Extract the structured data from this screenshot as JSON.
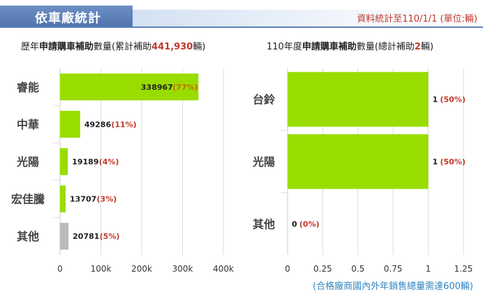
{
  "header": {
    "title": "依車廠統計",
    "source_note": "資料統計至110/1/1 (單位:輛)"
  },
  "left_heading": {
    "prefix": "歷年",
    "bold": "申請購車補助",
    "mid": "數量(累計補助",
    "total": "441,930",
    "suffix": "輛)"
  },
  "right_heading": {
    "prefix": "110年度",
    "bold": "申請購車補助",
    "mid": "數量(總計補助",
    "total": "2",
    "suffix": "輛)"
  },
  "footnote": "(合格廠商國內外年銷售總量需達600輛)",
  "colors": {
    "bar": "#99dd00",
    "other_bar": "#bbbbbb",
    "pct": "#c0392b",
    "grid": "#dddddd"
  },
  "chart_data": [
    {
      "type": "bar",
      "orientation": "horizontal",
      "categories": [
        "睿能",
        "中華",
        "光陽",
        "宏佳騰",
        "其他"
      ],
      "values": [
        338967,
        49286,
        19189,
        13707,
        20781
      ],
      "labels": [
        "338967",
        "49286",
        "19189",
        "13707",
        "20781"
      ],
      "percent_labels": [
        "(77%)",
        "(11%)",
        "(4%)",
        "(3%)",
        "(5%)"
      ],
      "xlim": [
        0,
        400000
      ],
      "x_ticks": [
        "0",
        "100k",
        "200k",
        "300k",
        "400k"
      ],
      "grid": true
    },
    {
      "type": "bar",
      "orientation": "horizontal",
      "categories": [
        "台鈴",
        "光陽",
        "其他"
      ],
      "values": [
        1,
        1,
        0
      ],
      "labels": [
        "1",
        "1",
        "0"
      ],
      "percent_labels": [
        "(50%)",
        "(50%)",
        "(0%)"
      ],
      "xlim": [
        0,
        1.25
      ],
      "x_ticks": [
        "0",
        "0.25",
        "0.5",
        "0.75",
        "1",
        "1.25"
      ],
      "grid": true
    }
  ]
}
